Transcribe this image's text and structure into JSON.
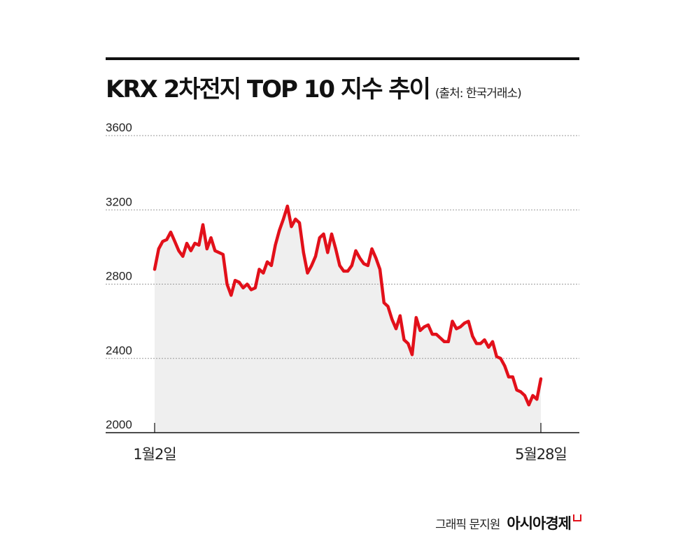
{
  "chart_data": {
    "type": "area",
    "title": "KRX 2차전지 TOP 10 지수 추이",
    "subtitle": "(출처: 한국거래소)",
    "xlabel": "",
    "ylabel": "",
    "ylim": [
      2000,
      3600
    ],
    "yticks": [
      "3600",
      "3200",
      "2800",
      "2400",
      "2000"
    ],
    "x_start_label": "1월2일",
    "x_end_label": "5월28일",
    "grid": true,
    "line_color": "#e2101a",
    "fill_color": "#efefef",
    "values": [
      2880,
      2990,
      3030,
      3040,
      3080,
      3030,
      2980,
      2950,
      3020,
      2980,
      3020,
      3010,
      3120,
      2990,
      3050,
      2980,
      2970,
      2960,
      2800,
      2740,
      2820,
      2810,
      2780,
      2800,
      2770,
      2780,
      2880,
      2860,
      2920,
      2900,
      3010,
      3090,
      3150,
      3220,
      3110,
      3150,
      3130,
      2970,
      2860,
      2900,
      2950,
      3050,
      3070,
      2970,
      3070,
      2990,
      2900,
      2870,
      2870,
      2900,
      2980,
      2940,
      2910,
      2900,
      2990,
      2940,
      2880,
      2700,
      2680,
      2610,
      2560,
      2630,
      2500,
      2480,
      2420,
      2620,
      2550,
      2570,
      2580,
      2530,
      2530,
      2510,
      2490,
      2490,
      2600,
      2560,
      2570,
      2590,
      2600,
      2520,
      2480,
      2480,
      2500,
      2460,
      2490,
      2410,
      2400,
      2360,
      2300,
      2300,
      2230,
      2220,
      2200,
      2150,
      2200,
      2180,
      2290
    ]
  },
  "footer": {
    "credit": "그래픽 문지원",
    "brand": "아시아경제"
  }
}
